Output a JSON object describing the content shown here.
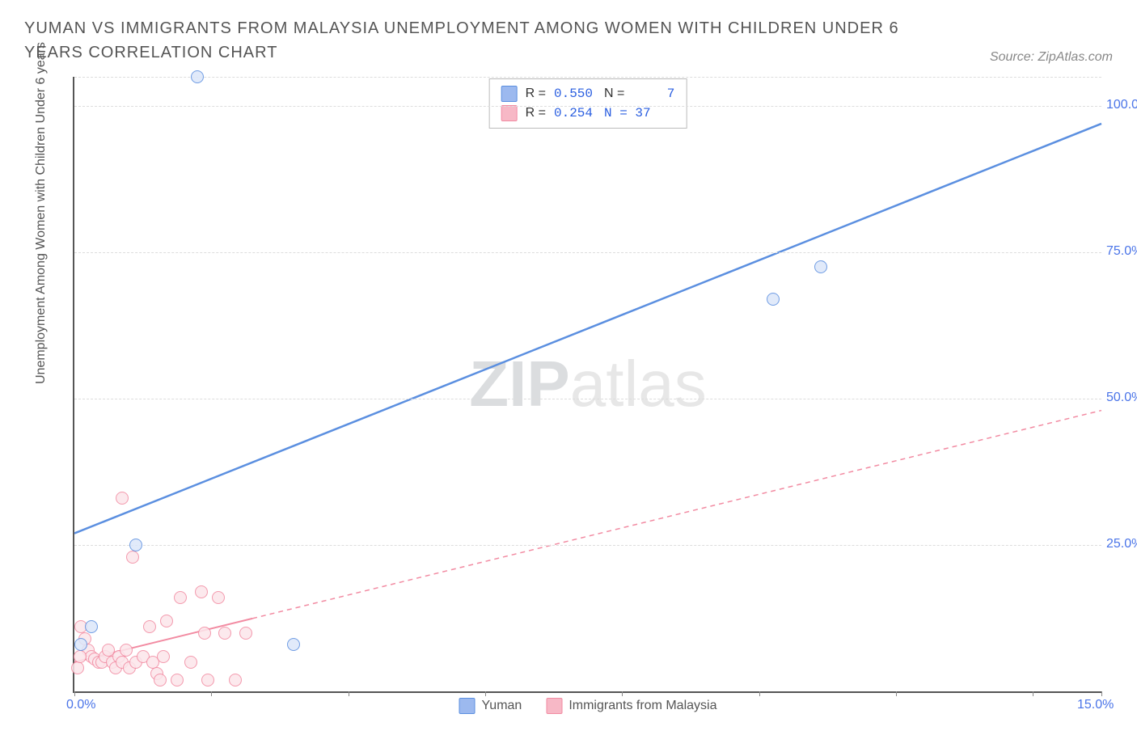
{
  "title": "YUMAN VS IMMIGRANTS FROM MALAYSIA UNEMPLOYMENT AMONG WOMEN WITH CHILDREN UNDER 6 YEARS CORRELATION CHART",
  "source_label": "Source: ZipAtlas.com",
  "watermark_main": "ZIP",
  "watermark_sub": "atlas",
  "chart": {
    "type": "scatter",
    "xlim": [
      0,
      15
    ],
    "ylim": [
      0,
      105
    ],
    "x_ticks": [
      0,
      2,
      4,
      6,
      8,
      10,
      12,
      14,
      15
    ],
    "x_tick_labels": {
      "0": "0.0%",
      "15": "15.0%"
    },
    "y_gridlines": [
      25,
      50,
      75,
      100,
      105
    ],
    "y_tick_labels": {
      "25": "25.0%",
      "50": "50.0%",
      "75": "75.0%",
      "100": "100.0%"
    },
    "ylabel": "Unemployment Among Women with Children Under 6 years",
    "grid_color": "#dddddd",
    "axis_color": "#555555",
    "tick_label_color": "#4a74e8",
    "background": "#ffffff",
    "marker_radius": 8,
    "marker_stroke": 1.5,
    "marker_fill_opacity": 0.35,
    "series": [
      {
        "name": "Yuman",
        "color_stroke": "#5b8fe0",
        "color_fill": "#9cb9ef",
        "legend_R": "0.550",
        "legend_N": "7",
        "trend": {
          "x1": 0,
          "y1": 27,
          "x2": 15,
          "y2": 97,
          "width": 2.5,
          "dash": "",
          "solid_extent": 15
        },
        "points": [
          {
            "x": 1.8,
            "y": 105
          },
          {
            "x": 10.2,
            "y": 67
          },
          {
            "x": 10.9,
            "y": 72.5
          },
          {
            "x": 0.9,
            "y": 25
          },
          {
            "x": 0.25,
            "y": 11
          },
          {
            "x": 0.1,
            "y": 8
          },
          {
            "x": 3.2,
            "y": 8
          }
        ]
      },
      {
        "name": "Immigrants from Malaysia",
        "color_stroke": "#f28ba2",
        "color_fill": "#f7b8c6",
        "legend_R": "0.254",
        "legend_N": "37",
        "trend": {
          "x1": 0,
          "y1": 5,
          "x2": 15,
          "y2": 48,
          "width": 2,
          "dash": "6,5",
          "solid_extent": 2.6
        },
        "points": [
          {
            "x": 0.7,
            "y": 33
          },
          {
            "x": 0.85,
            "y": 23
          },
          {
            "x": 0.1,
            "y": 11
          },
          {
            "x": 0.15,
            "y": 9
          },
          {
            "x": 0.2,
            "y": 7
          },
          {
            "x": 0.25,
            "y": 6
          },
          {
            "x": 0.3,
            "y": 5.5
          },
          {
            "x": 0.35,
            "y": 5
          },
          {
            "x": 0.4,
            "y": 5
          },
          {
            "x": 0.45,
            "y": 6
          },
          {
            "x": 0.5,
            "y": 7
          },
          {
            "x": 0.55,
            "y": 5
          },
          {
            "x": 0.6,
            "y": 4
          },
          {
            "x": 0.65,
            "y": 6
          },
          {
            "x": 0.7,
            "y": 5
          },
          {
            "x": 0.75,
            "y": 7
          },
          {
            "x": 0.8,
            "y": 4
          },
          {
            "x": 0.9,
            "y": 5
          },
          {
            "x": 1.0,
            "y": 6
          },
          {
            "x": 1.1,
            "y": 11
          },
          {
            "x": 1.15,
            "y": 5
          },
          {
            "x": 1.2,
            "y": 3
          },
          {
            "x": 1.25,
            "y": 2
          },
          {
            "x": 1.3,
            "y": 6
          },
          {
            "x": 1.35,
            "y": 12
          },
          {
            "x": 1.5,
            "y": 2
          },
          {
            "x": 1.55,
            "y": 16
          },
          {
            "x": 1.7,
            "y": 5
          },
          {
            "x": 1.85,
            "y": 17
          },
          {
            "x": 1.9,
            "y": 10
          },
          {
            "x": 1.95,
            "y": 2
          },
          {
            "x": 2.1,
            "y": 16
          },
          {
            "x": 2.2,
            "y": 10
          },
          {
            "x": 2.35,
            "y": 2
          },
          {
            "x": 2.5,
            "y": 10
          },
          {
            "x": 0.05,
            "y": 4
          },
          {
            "x": 0.08,
            "y": 6
          }
        ]
      }
    ]
  },
  "legend_bottom": [
    {
      "label": "Yuman",
      "fill": "#9cb9ef",
      "stroke": "#5b8fe0"
    },
    {
      "label": "Immigrants from Malaysia",
      "fill": "#f7b8c6",
      "stroke": "#f28ba2"
    }
  ]
}
